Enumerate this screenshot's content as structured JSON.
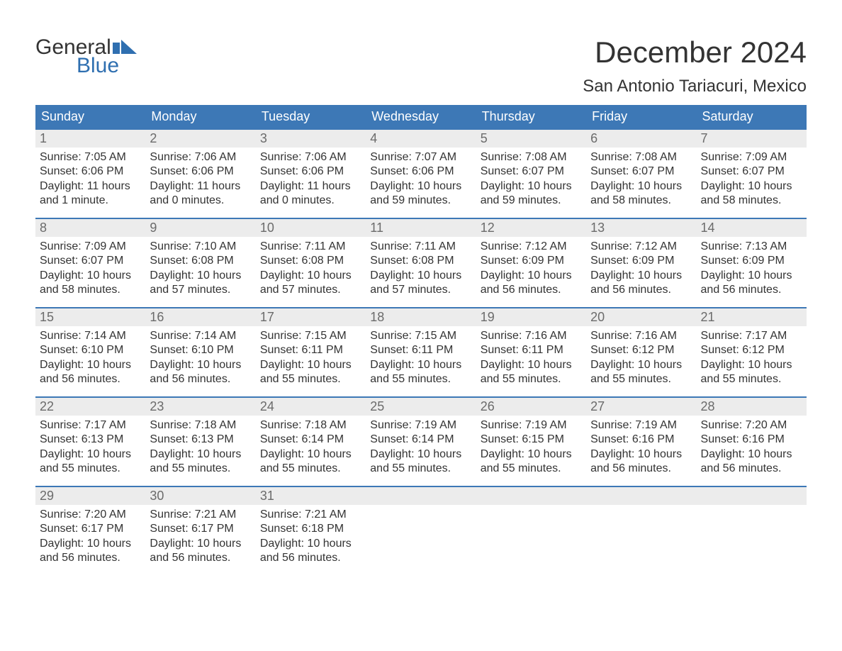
{
  "logo": {
    "line1": "General",
    "line2": "Blue",
    "icon_color": "#2f6fb0"
  },
  "title": "December 2024",
  "location": "San Antonio Tariacuri, Mexico",
  "colors": {
    "header_bg": "#3d78b6",
    "header_text": "#ffffff",
    "daynum_bg": "#ececec",
    "daynum_text": "#6b6b6b",
    "body_text": "#333333",
    "week_border": "#3d78b6",
    "page_bg": "#ffffff",
    "logo_blue": "#2f6fb0"
  },
  "typography": {
    "title_fontsize": 42,
    "location_fontsize": 24,
    "dayheader_fontsize": 18,
    "daynum_fontsize": 18,
    "body_fontsize": 16,
    "logo_fontsize": 30
  },
  "day_headers": [
    "Sunday",
    "Monday",
    "Tuesday",
    "Wednesday",
    "Thursday",
    "Friday",
    "Saturday"
  ],
  "weeks": [
    [
      {
        "n": "1",
        "sunrise": "7:05 AM",
        "sunset": "6:06 PM",
        "daylight": "11 hours and 1 minute."
      },
      {
        "n": "2",
        "sunrise": "7:06 AM",
        "sunset": "6:06 PM",
        "daylight": "11 hours and 0 minutes."
      },
      {
        "n": "3",
        "sunrise": "7:06 AM",
        "sunset": "6:06 PM",
        "daylight": "11 hours and 0 minutes."
      },
      {
        "n": "4",
        "sunrise": "7:07 AM",
        "sunset": "6:06 PM",
        "daylight": "10 hours and 59 minutes."
      },
      {
        "n": "5",
        "sunrise": "7:08 AM",
        "sunset": "6:07 PM",
        "daylight": "10 hours and 59 minutes."
      },
      {
        "n": "6",
        "sunrise": "7:08 AM",
        "sunset": "6:07 PM",
        "daylight": "10 hours and 58 minutes."
      },
      {
        "n": "7",
        "sunrise": "7:09 AM",
        "sunset": "6:07 PM",
        "daylight": "10 hours and 58 minutes."
      }
    ],
    [
      {
        "n": "8",
        "sunrise": "7:09 AM",
        "sunset": "6:07 PM",
        "daylight": "10 hours and 58 minutes."
      },
      {
        "n": "9",
        "sunrise": "7:10 AM",
        "sunset": "6:08 PM",
        "daylight": "10 hours and 57 minutes."
      },
      {
        "n": "10",
        "sunrise": "7:11 AM",
        "sunset": "6:08 PM",
        "daylight": "10 hours and 57 minutes."
      },
      {
        "n": "11",
        "sunrise": "7:11 AM",
        "sunset": "6:08 PM",
        "daylight": "10 hours and 57 minutes."
      },
      {
        "n": "12",
        "sunrise": "7:12 AM",
        "sunset": "6:09 PM",
        "daylight": "10 hours and 56 minutes."
      },
      {
        "n": "13",
        "sunrise": "7:12 AM",
        "sunset": "6:09 PM",
        "daylight": "10 hours and 56 minutes."
      },
      {
        "n": "14",
        "sunrise": "7:13 AM",
        "sunset": "6:09 PM",
        "daylight": "10 hours and 56 minutes."
      }
    ],
    [
      {
        "n": "15",
        "sunrise": "7:14 AM",
        "sunset": "6:10 PM",
        "daylight": "10 hours and 56 minutes."
      },
      {
        "n": "16",
        "sunrise": "7:14 AM",
        "sunset": "6:10 PM",
        "daylight": "10 hours and 56 minutes."
      },
      {
        "n": "17",
        "sunrise": "7:15 AM",
        "sunset": "6:11 PM",
        "daylight": "10 hours and 55 minutes."
      },
      {
        "n": "18",
        "sunrise": "7:15 AM",
        "sunset": "6:11 PM",
        "daylight": "10 hours and 55 minutes."
      },
      {
        "n": "19",
        "sunrise": "7:16 AM",
        "sunset": "6:11 PM",
        "daylight": "10 hours and 55 minutes."
      },
      {
        "n": "20",
        "sunrise": "7:16 AM",
        "sunset": "6:12 PM",
        "daylight": "10 hours and 55 minutes."
      },
      {
        "n": "21",
        "sunrise": "7:17 AM",
        "sunset": "6:12 PM",
        "daylight": "10 hours and 55 minutes."
      }
    ],
    [
      {
        "n": "22",
        "sunrise": "7:17 AM",
        "sunset": "6:13 PM",
        "daylight": "10 hours and 55 minutes."
      },
      {
        "n": "23",
        "sunrise": "7:18 AM",
        "sunset": "6:13 PM",
        "daylight": "10 hours and 55 minutes."
      },
      {
        "n": "24",
        "sunrise": "7:18 AM",
        "sunset": "6:14 PM",
        "daylight": "10 hours and 55 minutes."
      },
      {
        "n": "25",
        "sunrise": "7:19 AM",
        "sunset": "6:14 PM",
        "daylight": "10 hours and 55 minutes."
      },
      {
        "n": "26",
        "sunrise": "7:19 AM",
        "sunset": "6:15 PM",
        "daylight": "10 hours and 55 minutes."
      },
      {
        "n": "27",
        "sunrise": "7:19 AM",
        "sunset": "6:16 PM",
        "daylight": "10 hours and 56 minutes."
      },
      {
        "n": "28",
        "sunrise": "7:20 AM",
        "sunset": "6:16 PM",
        "daylight": "10 hours and 56 minutes."
      }
    ],
    [
      {
        "n": "29",
        "sunrise": "7:20 AM",
        "sunset": "6:17 PM",
        "daylight": "10 hours and 56 minutes."
      },
      {
        "n": "30",
        "sunrise": "7:21 AM",
        "sunset": "6:17 PM",
        "daylight": "10 hours and 56 minutes."
      },
      {
        "n": "31",
        "sunrise": "7:21 AM",
        "sunset": "6:18 PM",
        "daylight": "10 hours and 56 minutes."
      },
      {
        "empty": true
      },
      {
        "empty": true
      },
      {
        "empty": true
      },
      {
        "empty": true
      }
    ]
  ],
  "labels": {
    "sunrise": "Sunrise:",
    "sunset": "Sunset:",
    "daylight": "Daylight:"
  }
}
